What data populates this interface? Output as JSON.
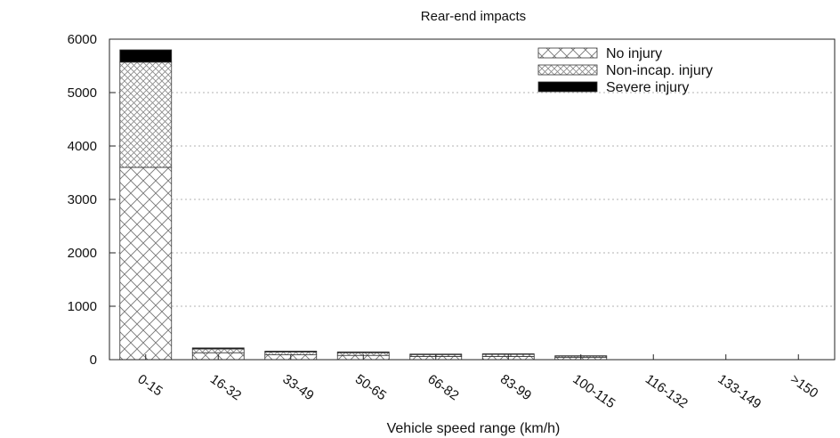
{
  "chart_data": {
    "type": "bar",
    "stacked": true,
    "title": "Rear-end impacts",
    "xlabel": "Vehicle speed range (km/h)",
    "ylabel": "",
    "ylim": [
      0,
      6000
    ],
    "yticks": [
      0,
      1000,
      2000,
      3000,
      4000,
      5000,
      6000
    ],
    "grid": true,
    "legend_position": "top-right",
    "categories": [
      "0-15",
      "16-32",
      "33-49",
      "50-65",
      "66-82",
      "83-99",
      "100-115",
      "116-132",
      "133-149",
      ">150"
    ],
    "series": [
      {
        "name": "No injury",
        "pattern": "crosshatch",
        "values": [
          3600,
          130,
          90,
          80,
          60,
          60,
          40,
          0,
          0,
          0
        ]
      },
      {
        "name": "Non-incap. injury",
        "pattern": "dense-crosshatch",
        "values": [
          1970,
          70,
          55,
          50,
          35,
          40,
          25,
          0,
          0,
          0
        ]
      },
      {
        "name": "Severe injury",
        "pattern": "solid",
        "values": [
          230,
          20,
          15,
          15,
          10,
          10,
          8,
          0,
          0,
          0
        ]
      }
    ]
  }
}
